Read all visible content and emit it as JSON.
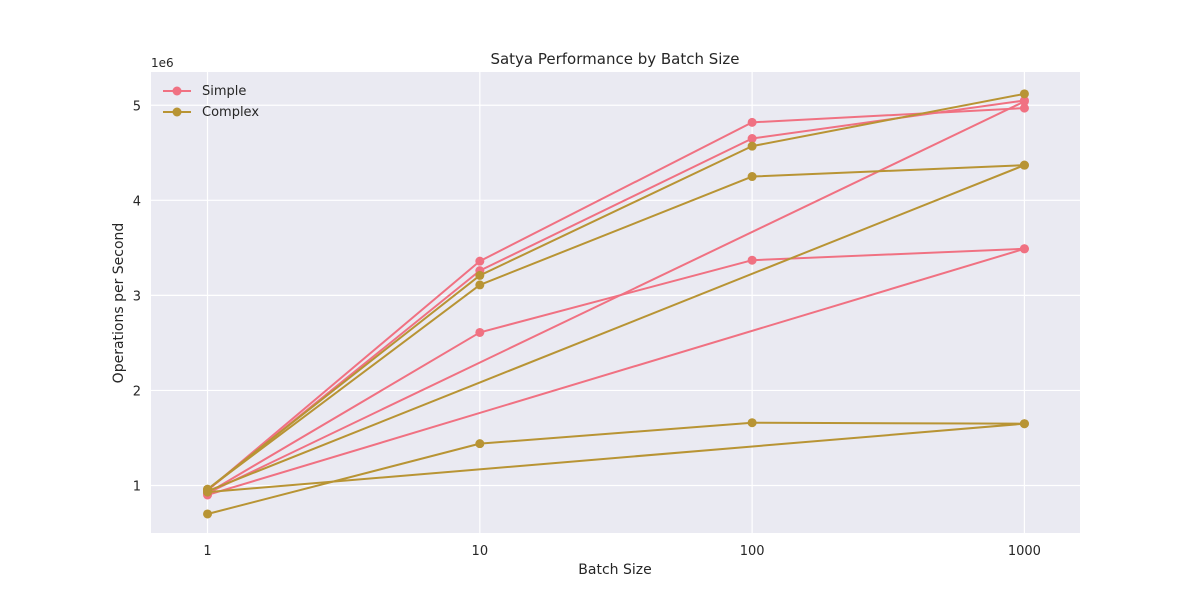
{
  "chart_data": {
    "type": "line",
    "title": "Satya Performance by Batch Size",
    "xlabel": "Batch Size",
    "ylabel": "Operations per Second",
    "x_scale": "log",
    "x_ticks": [
      1,
      10,
      100,
      1000
    ],
    "x_tick_labels": [
      "1",
      "10",
      "100",
      "1000"
    ],
    "y_ticks": [
      1,
      2,
      3,
      4,
      5
    ],
    "y_tick_labels": [
      "1",
      "2",
      "3",
      "4",
      "5"
    ],
    "y_exponent_label": "1e6",
    "xlim": [
      0.62,
      1600
    ],
    "ylim": [
      500000,
      5350000
    ],
    "grid": true,
    "legend_position": "top-left",
    "colors": {
      "simple": "#f07182",
      "complex": "#b89434",
      "plot_bg": "#eaeaf2",
      "grid": "#ffffff"
    },
    "series": [
      {
        "name": "Simple",
        "group": "simple",
        "legend": true,
        "x": [
          1,
          10,
          100,
          1000
        ],
        "y": [
          950000,
          3360000,
          4820000,
          4970000
        ]
      },
      {
        "name": "Simple",
        "group": "simple",
        "legend": false,
        "x": [
          1,
          10,
          100,
          1000
        ],
        "y": [
          950000,
          3260000,
          4650000,
          5050000
        ]
      },
      {
        "name": "Simple",
        "group": "simple",
        "legend": false,
        "x": [
          1,
          10,
          100,
          1000
        ],
        "y": [
          920000,
          2610000,
          3370000,
          3490000
        ]
      },
      {
        "name": "Simple",
        "group": "simple",
        "legend": false,
        "x": [
          1,
          1000
        ],
        "y": [
          920000,
          5040000
        ]
      },
      {
        "name": "Simple",
        "group": "simple",
        "legend": false,
        "x": [
          1,
          1000
        ],
        "y": [
          900000,
          3490000
        ]
      },
      {
        "name": "Complex",
        "group": "complex",
        "legend": true,
        "x": [
          1,
          10,
          100,
          1000
        ],
        "y": [
          960000,
          3210000,
          4570000,
          5120000
        ]
      },
      {
        "name": "Complex",
        "group": "complex",
        "legend": false,
        "x": [
          1,
          10,
          100,
          1000
        ],
        "y": [
          960000,
          3110000,
          4250000,
          4370000
        ]
      },
      {
        "name": "Complex",
        "group": "complex",
        "legend": false,
        "x": [
          1,
          10,
          100,
          1000
        ],
        "y": [
          700000,
          1440000,
          1660000,
          1650000
        ]
      },
      {
        "name": "Complex",
        "group": "complex",
        "legend": false,
        "x": [
          1,
          1000
        ],
        "y": [
          940000,
          4370000
        ]
      },
      {
        "name": "Complex",
        "group": "complex",
        "legend": false,
        "x": [
          1,
          1000
        ],
        "y": [
          930000,
          1650000
        ]
      }
    ]
  }
}
